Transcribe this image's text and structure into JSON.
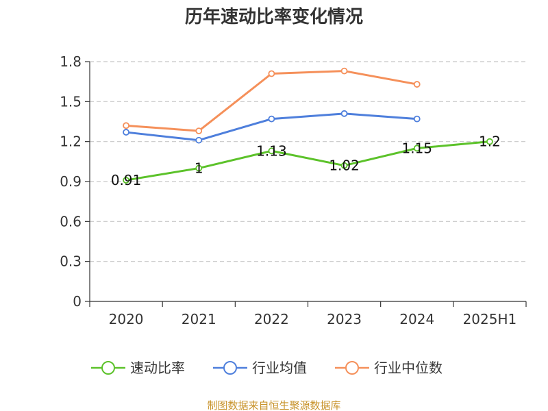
{
  "chart_data": {
    "type": "line",
    "title": "历年速动比率变化情况",
    "categories": [
      "2020",
      "2021",
      "2022",
      "2023",
      "2024",
      "2025H1"
    ],
    "y_ticks": [
      "0",
      "0.3",
      "0.6",
      "0.9",
      "1.2",
      "1.5",
      "1.8"
    ],
    "ylim": [
      0,
      1.8
    ],
    "grid": true,
    "legend_position": "bottom",
    "series": [
      {
        "name": "速动比率",
        "color": "#5cc22a",
        "values": [
          0.91,
          1,
          1.13,
          1.02,
          1.15,
          1.2
        ],
        "labels": [
          "0.91",
          "1",
          "1.13",
          "1.02",
          "1.15",
          "1.2"
        ],
        "show_labels": true
      },
      {
        "name": "行业均值",
        "color": "#4e7fdc",
        "values": [
          1.27,
          1.21,
          1.37,
          1.41,
          1.37,
          null
        ],
        "show_labels": false
      },
      {
        "name": "行业中位数",
        "color": "#f5905a",
        "values": [
          1.32,
          1.28,
          1.71,
          1.73,
          1.63,
          null
        ],
        "show_labels": false
      }
    ],
    "source": "制图数据来自恒生聚源数据库"
  }
}
